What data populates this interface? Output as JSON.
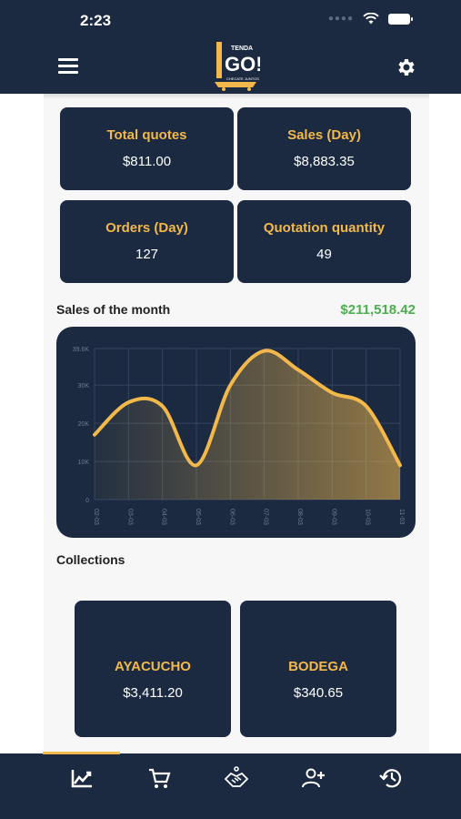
{
  "status_bar": {
    "time": "2:23"
  },
  "header": {
    "logo_text_top": "TENDA",
    "logo_text_main": "GO!",
    "logo_text_bottom": "CHECATE JUNTOS"
  },
  "stats": [
    {
      "title": "Total quotes",
      "value": "$811.00"
    },
    {
      "title": "Sales (Day)",
      "value": "$8,883.35"
    },
    {
      "title": "Orders (Day)",
      "value": "127"
    },
    {
      "title": "Quotation quantity",
      "value": "49"
    }
  ],
  "month": {
    "label": "Sales of the month",
    "total": "$211,518.42"
  },
  "chart_data": {
    "type": "area",
    "x": [
      "02-03",
      "03-03",
      "04-03",
      "05-03",
      "06-03",
      "07-03",
      "08-03",
      "09-03",
      "10-03",
      "11-03"
    ],
    "values": [
      17000,
      25500,
      24500,
      9000,
      30000,
      39000,
      34000,
      28000,
      24500,
      9000
    ],
    "y_ticks": [
      "0",
      "10K",
      "20K",
      "30K",
      "39.6K"
    ],
    "ylim": [
      0,
      39600
    ],
    "grid": true,
    "color": "#f2b84b"
  },
  "collections": {
    "label": "Collections",
    "items": [
      {
        "title": "AYACUCHO",
        "value": "$3,411.20"
      },
      {
        "title": "BODEGA",
        "value": "$340.65"
      }
    ]
  },
  "colors": {
    "navy": "#1b2a41",
    "accent": "#f2b84b",
    "green": "#4caf50"
  },
  "nav": [
    {
      "icon": "chart-icon",
      "active": true
    },
    {
      "icon": "cart-icon"
    },
    {
      "icon": "handshake-icon"
    },
    {
      "icon": "add-user-icon"
    },
    {
      "icon": "history-icon"
    }
  ]
}
